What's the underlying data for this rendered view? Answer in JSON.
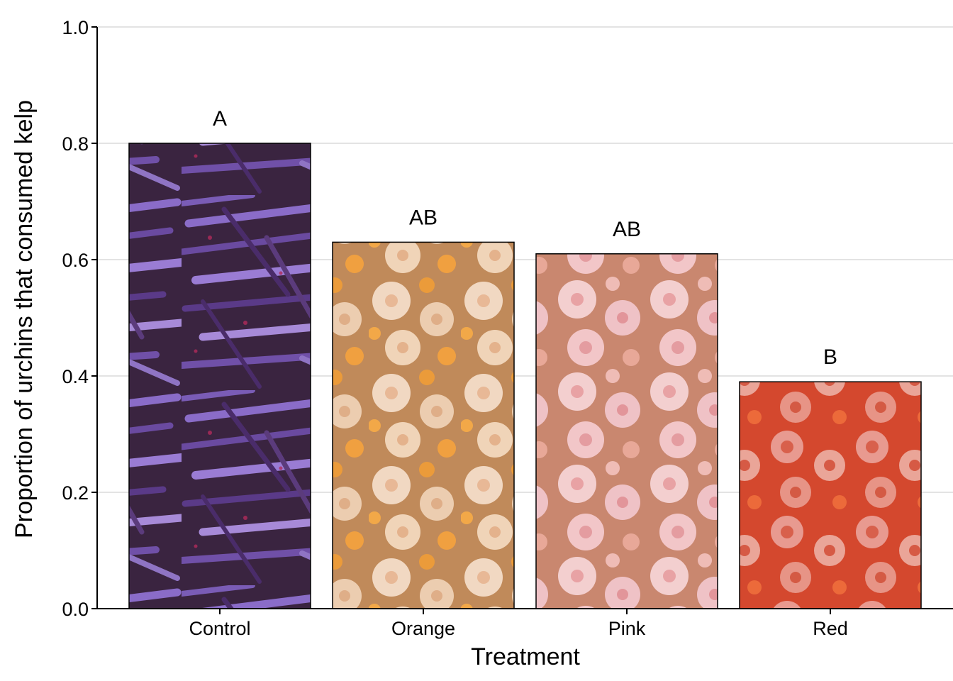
{
  "chart_data": {
    "type": "bar",
    "categories": [
      "Control",
      "Orange",
      "Pink",
      "Red"
    ],
    "values": [
      0.8,
      0.63,
      0.61,
      0.39
    ],
    "significance_letters": [
      "A",
      "AB",
      "AB",
      "B"
    ],
    "bar_fill_textures": [
      "purple sea urchin spines photo",
      "orange anemones photo",
      "pink anemones photo",
      "red anemones photo"
    ],
    "bar_colors": [
      "#6a4a86",
      "#d4a06e",
      "#d9a094",
      "#d9533a"
    ],
    "xlabel": "Treatment",
    "ylabel": "Proportion of urchins that consumed kelp",
    "ylim": [
      0,
      1
    ],
    "yticks": [
      "0.0",
      "0.2",
      "0.4",
      "0.6",
      "0.8",
      "1.0"
    ],
    "grid": "horizontal major gridlines",
    "gridline_color": "#e3e3e3"
  }
}
